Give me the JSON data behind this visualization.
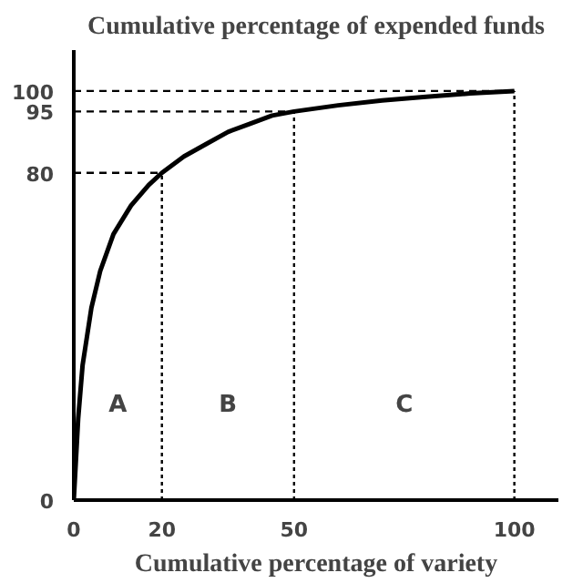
{
  "chart_data": {
    "type": "line",
    "ylabel": "Cumulative percentage of expended funds",
    "xlabel": "Cumulative percentage of variety",
    "series": [
      {
        "color": "#000000",
        "x": [
          0,
          1,
          2,
          4,
          6,
          9,
          13,
          17,
          20,
          25,
          30,
          35,
          40,
          45,
          50,
          60,
          70,
          80,
          90,
          100
        ],
        "values": [
          0,
          20,
          33,
          47,
          56,
          65,
          72,
          77,
          80,
          84,
          87,
          90,
          92,
          94,
          95,
          96.5,
          97.7,
          98.6,
          99.4,
          100
        ]
      }
    ],
    "xlim": [
      0,
      110
    ],
    "ylim": [
      0,
      110
    ],
    "xticks": [
      0,
      20,
      50,
      100
    ],
    "yticks": [
      0,
      80,
      95,
      100
    ],
    "grid": false,
    "marker": "none",
    "line_style": "solid",
    "ref_lines": [
      {
        "axis": "y",
        "value": 80,
        "color": "#000000",
        "line_style": "dashed"
      },
      {
        "axis": "y",
        "value": 95,
        "color": "#000000",
        "line_style": "dashed"
      },
      {
        "axis": "y",
        "value": 100,
        "color": "#000000",
        "line_style": "dashed"
      },
      {
        "axis": "x",
        "value": 20,
        "color": "#000000",
        "line_style": "dotted"
      },
      {
        "axis": "x",
        "value": 50,
        "color": "#000000",
        "line_style": "dotted"
      },
      {
        "axis": "x",
        "value": 100,
        "color": "#000000",
        "line_style": "dotted"
      }
    ],
    "annotations": [
      "A",
      "B",
      "C"
    ]
  }
}
